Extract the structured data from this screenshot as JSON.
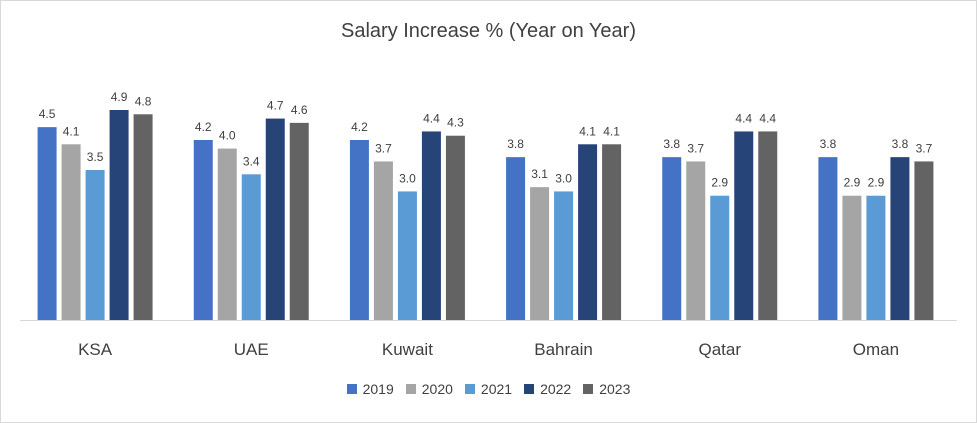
{
  "chart_data": {
    "type": "bar",
    "title": "Salary Increase % (Year on Year)",
    "xlabel": "",
    "ylabel": "",
    "ylim": [
      0,
      5.0
    ],
    "grid": false,
    "legend_position": "bottom",
    "categories": [
      "KSA",
      "UAE",
      "Kuwait",
      "Bahrain",
      "Qatar",
      "Oman"
    ],
    "series": [
      {
        "name": "2019",
        "color": "#4472C4",
        "values": [
          4.5,
          4.2,
          4.2,
          3.8,
          3.8,
          3.8
        ]
      },
      {
        "name": "2020",
        "color": "#A5A5A5",
        "values": [
          4.1,
          4.0,
          3.7,
          3.1,
          3.7,
          2.9
        ]
      },
      {
        "name": "2021",
        "color": "#5B9BD5",
        "values": [
          3.5,
          3.4,
          3.0,
          3.0,
          2.9,
          2.9
        ]
      },
      {
        "name": "2022",
        "color": "#264478",
        "values": [
          4.9,
          4.7,
          4.4,
          4.1,
          4.4,
          3.8
        ]
      },
      {
        "name": "2023",
        "color": "#636363",
        "values": [
          4.8,
          4.6,
          4.3,
          4.1,
          4.4,
          3.7
        ]
      }
    ]
  }
}
